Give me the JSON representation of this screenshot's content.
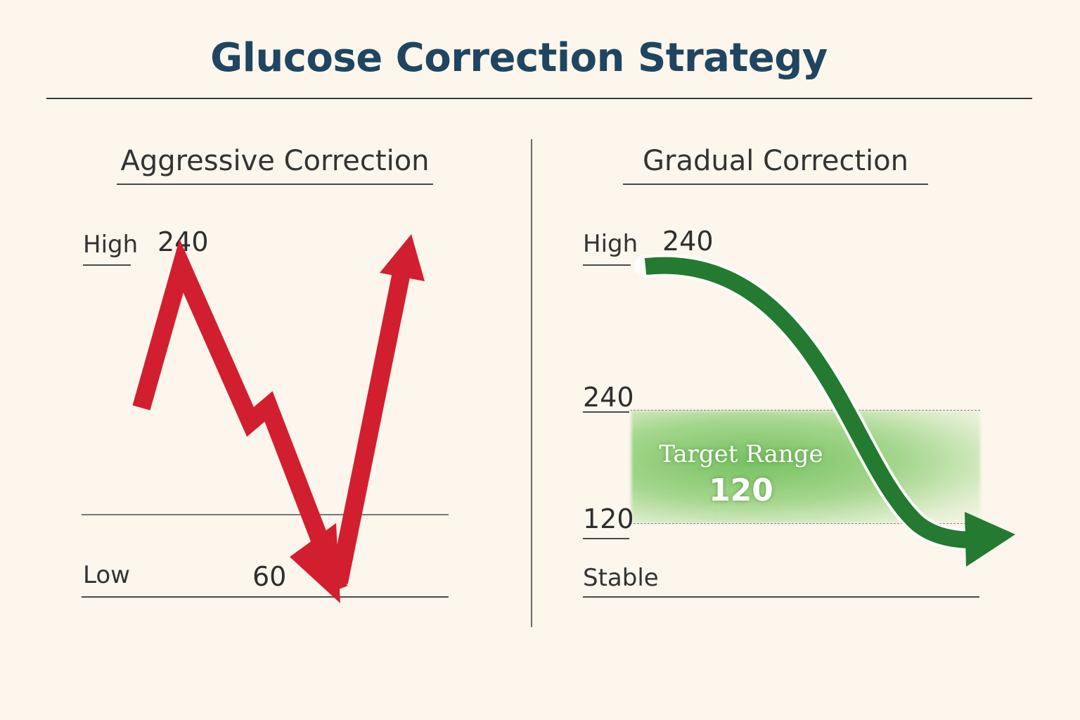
{
  "title": "Glucose Correction Strategy",
  "left_panel": {
    "heading": "Aggressive Correction",
    "high_label": "High",
    "high_value": "240",
    "low_label": "Low",
    "low_value": "60",
    "arrow_color": "#d11f30"
  },
  "right_panel": {
    "heading": "Gradual Correction",
    "high_label": "High",
    "high_value": "240",
    "range_top_value": "240",
    "range_bottom_value": "120",
    "stable_label": "Stable",
    "target_label": "Target Range",
    "target_value": "120",
    "arrow_color": "#237a30",
    "target_color": "#7cc665"
  }
}
